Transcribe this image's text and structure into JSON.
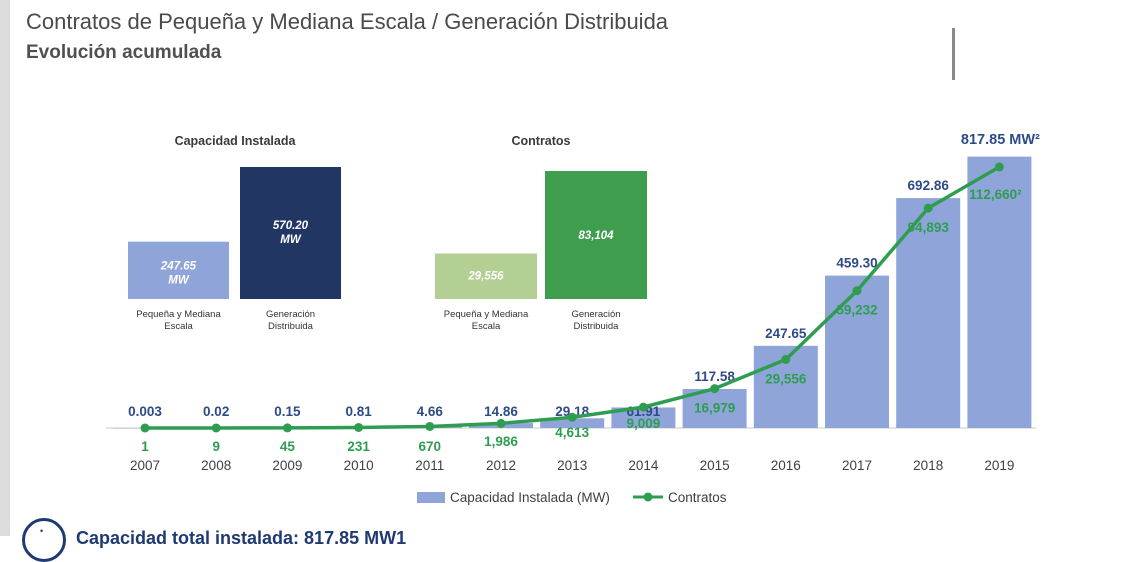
{
  "header": {
    "title": "Contratos de Pequeña y Mediana Escala / Generación Distribuida",
    "subtitle": "Evolución acumulada"
  },
  "footer": {
    "text": "Capacidad total instalada: 817.85 MW1"
  },
  "colors": {
    "capacity_bar": "#8fa5da",
    "contracts_line": "#2e9d50",
    "capacity_label": "#2e4b86",
    "contracts_label": "#2e9d50",
    "gd_capacity_bar": "#213663",
    "pme_contract_bar": "#b3cf94",
    "gd_contract_bar": "#3f9e4e"
  },
  "chart_data": [
    {
      "type": "bar",
      "title": "Capacidad Instalada",
      "categories": [
        "Pequeña y Mediana Escala",
        "Generación Distribuida"
      ],
      "values": [
        247.65,
        570.2
      ],
      "value_labels": [
        "247.65\nMW",
        "570.20\nMW"
      ],
      "ylim": [
        0,
        570.2
      ]
    },
    {
      "type": "bar",
      "title": "Contratos",
      "categories": [
        "Pequeña y Mediana Escala",
        "Generación Distribuida"
      ],
      "values": [
        29556,
        83104
      ],
      "value_labels": [
        "29,556",
        "83,104"
      ],
      "ylim": [
        0,
        83104
      ]
    },
    {
      "type": "bar+line",
      "categories": [
        "2007",
        "2008",
        "2009",
        "2010",
        "2011",
        "2012",
        "2013",
        "2014",
        "2015",
        "2016",
        "2017",
        "2018",
        "2019"
      ],
      "series": [
        {
          "name": "Capacidad Instalada (MW)",
          "type": "bar",
          "values": [
            0.003,
            0.02,
            0.15,
            0.81,
            4.66,
            14.86,
            29.18,
            61.91,
            117.58,
            247.65,
            459.3,
            692.86,
            817.85
          ],
          "labels": [
            "0.003",
            "0.02",
            "0.15",
            "0.81",
            "4.66",
            "14.86",
            "29.18",
            "61.91",
            "117.58",
            "247.65",
            "459.30",
            "692.86",
            "817.85 MW²"
          ]
        },
        {
          "name": "Contratos",
          "type": "line",
          "values": [
            1,
            9,
            45,
            231,
            670,
            1986,
            4613,
            9009,
            16979,
            29556,
            59232,
            94893,
            112660
          ],
          "labels": [
            "1",
            "9",
            "45",
            "231",
            "670",
            "1,986",
            "4,613",
            "9,009",
            "16,979",
            "29,556",
            "59,232",
            "94,893",
            "112,660²"
          ]
        }
      ],
      "ylim_bars": [
        0,
        880
      ],
      "ylim_line": [
        0,
        126000
      ],
      "legend": "bottom"
    }
  ]
}
